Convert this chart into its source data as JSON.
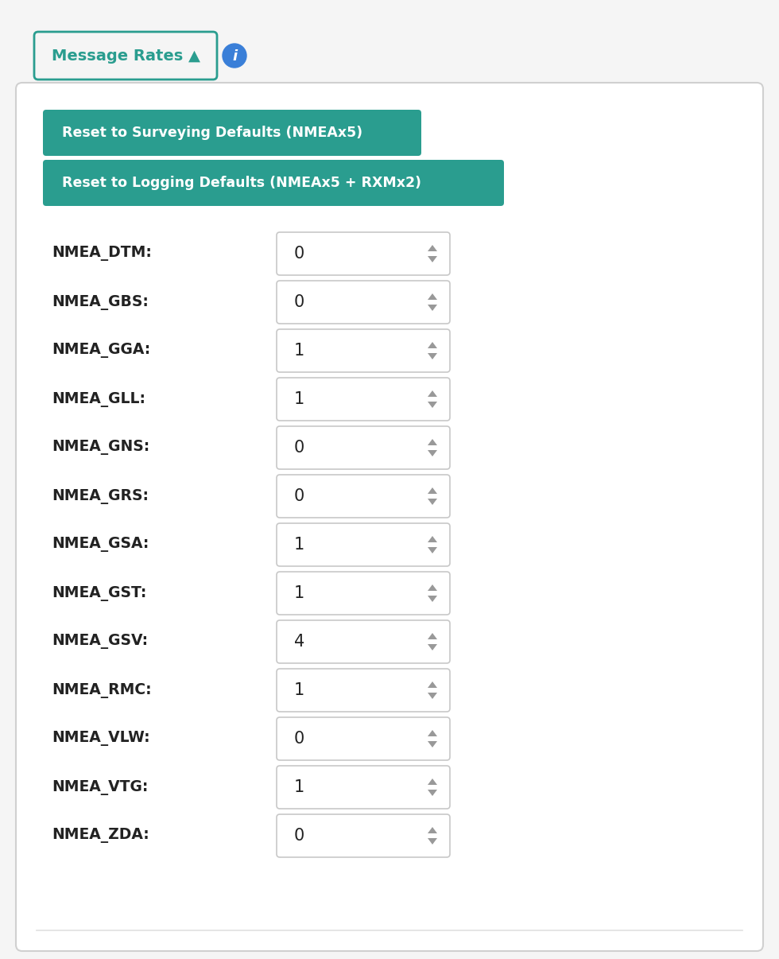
{
  "bg_color": "#f5f5f5",
  "panel_bg": "#ffffff",
  "panel_border": "#d0d0d0",
  "header_btn_text": "Message Rates ▲",
  "header_btn_border": "#2a9d8f",
  "header_btn_text_color": "#2a9d8f",
  "info_icon_color": "#3a7fd8",
  "btn1_text": "Reset to Surveying Defaults (NMEAx5)",
  "btn2_text": "Reset to Logging Defaults (NMEAx5 + RXMx2)",
  "btn_bg": "#2a9d8f",
  "btn_text_color": "#ffffff",
  "rows": [
    {
      "label": "NMEA_DTM:",
      "value": "0"
    },
    {
      "label": "NMEA_GBS:",
      "value": "0"
    },
    {
      "label": "NMEA_GGA:",
      "value": "1"
    },
    {
      "label": "NMEA_GLL:",
      "value": "1"
    },
    {
      "label": "NMEA_GNS:",
      "value": "0"
    },
    {
      "label": "NMEA_GRS:",
      "value": "0"
    },
    {
      "label": "NMEA_GSA:",
      "value": "1"
    },
    {
      "label": "NMEA_GST:",
      "value": "1"
    },
    {
      "label": "NMEA_GSV:",
      "value": "4"
    },
    {
      "label": "NMEA_RMC:",
      "value": "1"
    },
    {
      "label": "NMEA_VLW:",
      "value": "0"
    },
    {
      "label": "NMEA_VTG:",
      "value": "1"
    },
    {
      "label": "NMEA_ZDA:",
      "value": "0"
    }
  ],
  "label_color": "#222222",
  "input_bg": "#ffffff",
  "input_border": "#c8c8c8",
  "spinner_color": "#999999",
  "fig_width": 9.8,
  "fig_height": 12.06,
  "dpi": 100
}
